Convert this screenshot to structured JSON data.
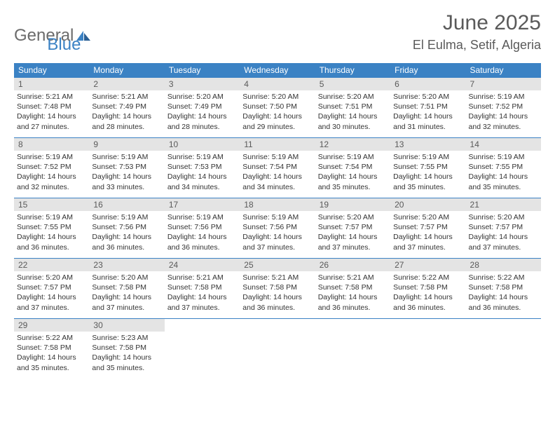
{
  "logo": {
    "word1": "General",
    "word2": "Blue"
  },
  "title": "June 2025",
  "location": "El Eulma, Setif, Algeria",
  "colors": {
    "header_bg": "#3b82c4",
    "header_fg": "#ffffff",
    "daynum_bg": "#e4e4e4",
    "text": "#333333",
    "title_color": "#5a5a5a",
    "rule": "#3b82c4"
  },
  "typography": {
    "title_fontsize": 30,
    "location_fontsize": 18,
    "dayheader_fontsize": 12,
    "body_fontsize": 10.5
  },
  "day_headers": [
    "Sunday",
    "Monday",
    "Tuesday",
    "Wednesday",
    "Thursday",
    "Friday",
    "Saturday"
  ],
  "days": [
    {
      "n": "1",
      "sunrise": "5:21 AM",
      "sunset": "7:48 PM",
      "dl_h": "14",
      "dl_m": "27"
    },
    {
      "n": "2",
      "sunrise": "5:21 AM",
      "sunset": "7:49 PM",
      "dl_h": "14",
      "dl_m": "28"
    },
    {
      "n": "3",
      "sunrise": "5:20 AM",
      "sunset": "7:49 PM",
      "dl_h": "14",
      "dl_m": "28"
    },
    {
      "n": "4",
      "sunrise": "5:20 AM",
      "sunset": "7:50 PM",
      "dl_h": "14",
      "dl_m": "29"
    },
    {
      "n": "5",
      "sunrise": "5:20 AM",
      "sunset": "7:51 PM",
      "dl_h": "14",
      "dl_m": "30"
    },
    {
      "n": "6",
      "sunrise": "5:20 AM",
      "sunset": "7:51 PM",
      "dl_h": "14",
      "dl_m": "31"
    },
    {
      "n": "7",
      "sunrise": "5:19 AM",
      "sunset": "7:52 PM",
      "dl_h": "14",
      "dl_m": "32"
    },
    {
      "n": "8",
      "sunrise": "5:19 AM",
      "sunset": "7:52 PM",
      "dl_h": "14",
      "dl_m": "32"
    },
    {
      "n": "9",
      "sunrise": "5:19 AM",
      "sunset": "7:53 PM",
      "dl_h": "14",
      "dl_m": "33"
    },
    {
      "n": "10",
      "sunrise": "5:19 AM",
      "sunset": "7:53 PM",
      "dl_h": "14",
      "dl_m": "34"
    },
    {
      "n": "11",
      "sunrise": "5:19 AM",
      "sunset": "7:54 PM",
      "dl_h": "14",
      "dl_m": "34"
    },
    {
      "n": "12",
      "sunrise": "5:19 AM",
      "sunset": "7:54 PM",
      "dl_h": "14",
      "dl_m": "35"
    },
    {
      "n": "13",
      "sunrise": "5:19 AM",
      "sunset": "7:55 PM",
      "dl_h": "14",
      "dl_m": "35"
    },
    {
      "n": "14",
      "sunrise": "5:19 AM",
      "sunset": "7:55 PM",
      "dl_h": "14",
      "dl_m": "35"
    },
    {
      "n": "15",
      "sunrise": "5:19 AM",
      "sunset": "7:55 PM",
      "dl_h": "14",
      "dl_m": "36"
    },
    {
      "n": "16",
      "sunrise": "5:19 AM",
      "sunset": "7:56 PM",
      "dl_h": "14",
      "dl_m": "36"
    },
    {
      "n": "17",
      "sunrise": "5:19 AM",
      "sunset": "7:56 PM",
      "dl_h": "14",
      "dl_m": "36"
    },
    {
      "n": "18",
      "sunrise": "5:19 AM",
      "sunset": "7:56 PM",
      "dl_h": "14",
      "dl_m": "37"
    },
    {
      "n": "19",
      "sunrise": "5:20 AM",
      "sunset": "7:57 PM",
      "dl_h": "14",
      "dl_m": "37"
    },
    {
      "n": "20",
      "sunrise": "5:20 AM",
      "sunset": "7:57 PM",
      "dl_h": "14",
      "dl_m": "37"
    },
    {
      "n": "21",
      "sunrise": "5:20 AM",
      "sunset": "7:57 PM",
      "dl_h": "14",
      "dl_m": "37"
    },
    {
      "n": "22",
      "sunrise": "5:20 AM",
      "sunset": "7:57 PM",
      "dl_h": "14",
      "dl_m": "37"
    },
    {
      "n": "23",
      "sunrise": "5:20 AM",
      "sunset": "7:58 PM",
      "dl_h": "14",
      "dl_m": "37"
    },
    {
      "n": "24",
      "sunrise": "5:21 AM",
      "sunset": "7:58 PM",
      "dl_h": "14",
      "dl_m": "37"
    },
    {
      "n": "25",
      "sunrise": "5:21 AM",
      "sunset": "7:58 PM",
      "dl_h": "14",
      "dl_m": "36"
    },
    {
      "n": "26",
      "sunrise": "5:21 AM",
      "sunset": "7:58 PM",
      "dl_h": "14",
      "dl_m": "36"
    },
    {
      "n": "27",
      "sunrise": "5:22 AM",
      "sunset": "7:58 PM",
      "dl_h": "14",
      "dl_m": "36"
    },
    {
      "n": "28",
      "sunrise": "5:22 AM",
      "sunset": "7:58 PM",
      "dl_h": "14",
      "dl_m": "36"
    },
    {
      "n": "29",
      "sunrise": "5:22 AM",
      "sunset": "7:58 PM",
      "dl_h": "14",
      "dl_m": "35"
    },
    {
      "n": "30",
      "sunrise": "5:23 AM",
      "sunset": "7:58 PM",
      "dl_h": "14",
      "dl_m": "35"
    }
  ],
  "labels": {
    "sunrise": "Sunrise: ",
    "sunset": "Sunset: ",
    "daylight_prefix": "Daylight: ",
    "hours_word": " hours",
    "and_word": "and ",
    "minutes_word": " minutes."
  }
}
